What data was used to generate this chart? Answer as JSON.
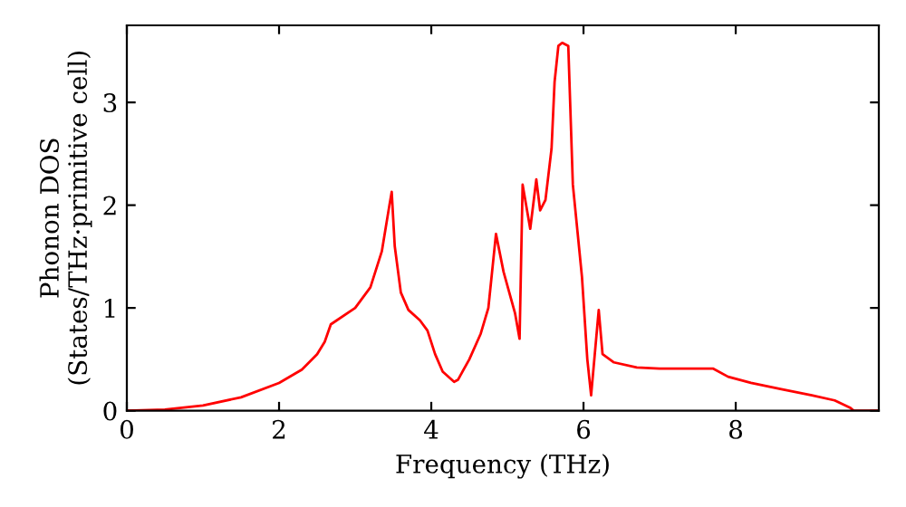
{
  "chart_data": {
    "type": "line",
    "xlabel": "Frequency (THz)",
    "ylabel": "Phonon DOS\n(States/THz·primitive cell)",
    "xlim": [
      0,
      9.88
    ],
    "ylim": [
      0,
      3.75
    ],
    "xticks": [
      0,
      2,
      4,
      6,
      8
    ],
    "yticks": [
      0,
      1,
      2,
      3
    ],
    "grid": false,
    "legend": false,
    "series": [
      {
        "color": "#ff0000",
        "x": [
          0,
          0.5,
          1,
          1.5,
          2,
          2.3,
          2.5,
          2.6,
          2.68,
          3.0,
          3.2,
          3.35,
          3.45,
          3.48,
          3.52,
          3.6,
          3.7,
          3.85,
          3.95,
          4.05,
          4.15,
          4.3,
          4.35,
          4.5,
          4.65,
          4.75,
          4.85,
          4.95,
          5.1,
          5.16,
          5.2,
          5.3,
          5.38,
          5.43,
          5.5,
          5.58,
          5.62,
          5.67,
          5.72,
          5.8,
          5.86,
          5.98,
          6.05,
          6.1,
          6.2,
          6.25,
          6.4,
          6.7,
          7.0,
          7.4,
          7.7,
          7.9,
          8.2,
          8.6,
          9.0,
          9.3,
          9.5,
          9.55,
          9.88
        ],
        "values": [
          0,
          0.01,
          0.05,
          0.13,
          0.27,
          0.4,
          0.55,
          0.67,
          0.84,
          1.0,
          1.2,
          1.55,
          2.0,
          2.13,
          1.6,
          1.15,
          0.98,
          0.88,
          0.78,
          0.55,
          0.38,
          0.28,
          0.3,
          0.5,
          0.75,
          1.0,
          1.72,
          1.35,
          0.95,
          0.7,
          2.2,
          1.77,
          2.25,
          1.95,
          2.05,
          2.55,
          3.2,
          3.55,
          3.58,
          3.55,
          2.2,
          1.3,
          0.5,
          0.15,
          0.98,
          0.55,
          0.47,
          0.42,
          0.41,
          0.41,
          0.41,
          0.33,
          0.27,
          0.21,
          0.15,
          0.1,
          0.03,
          0,
          0
        ]
      }
    ]
  }
}
